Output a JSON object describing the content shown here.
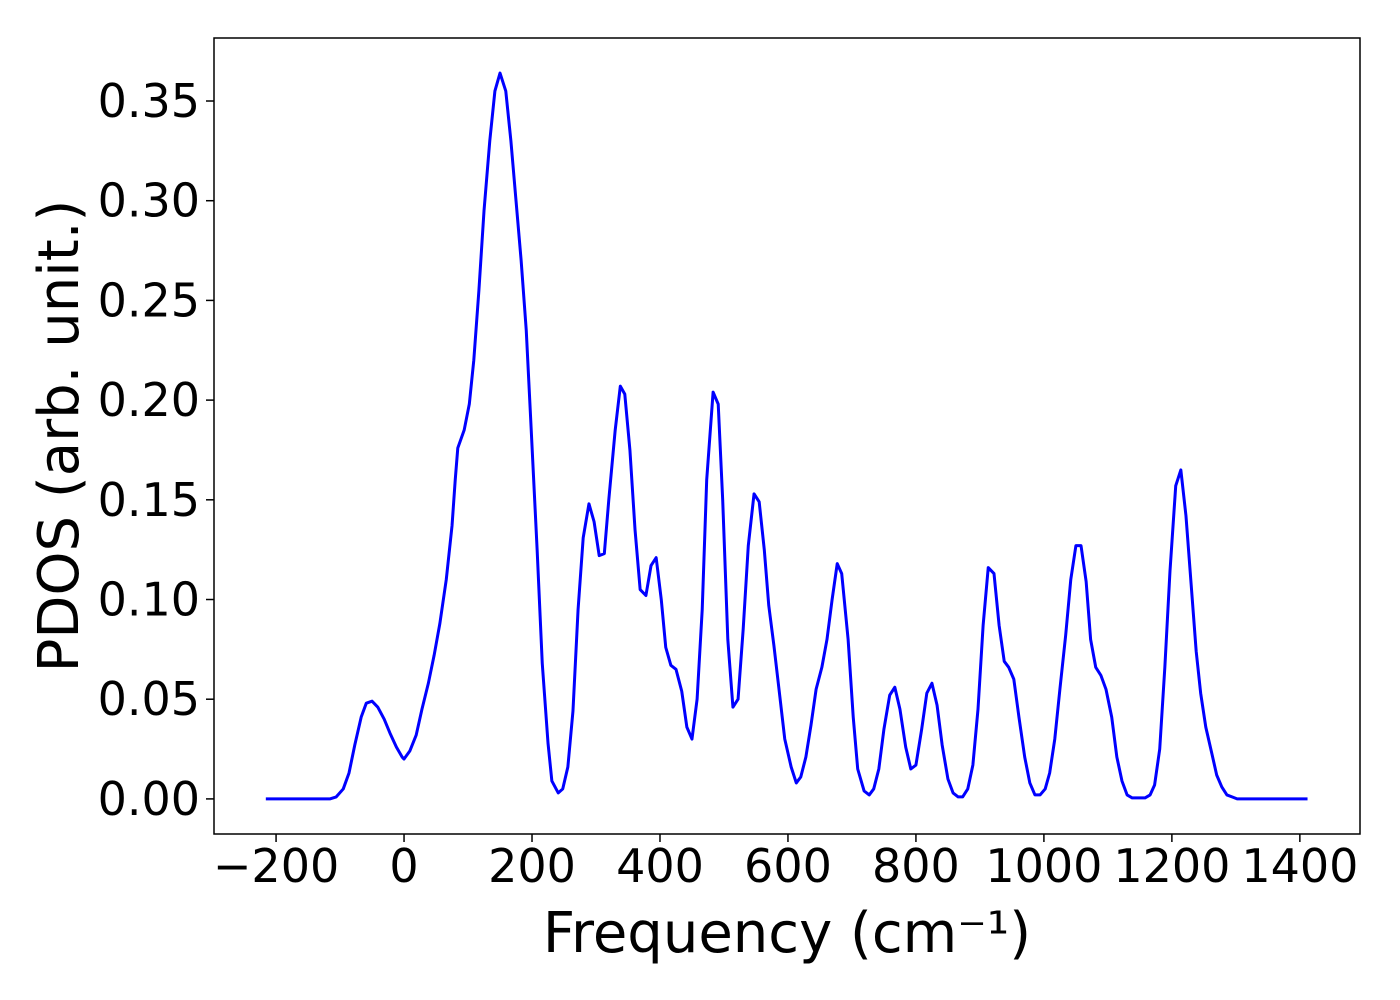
{
  "chart_data": {
    "type": "line",
    "xlabel": "Frequency (cm⁻¹)",
    "ylabel": "PDOS (arb. unit.)",
    "x": [
      -216,
      -116,
      -106,
      -95,
      -86,
      -77,
      -67,
      -59,
      -50,
      -41,
      -31,
      -22,
      -12,
      -3,
      0,
      9,
      19,
      28,
      38,
      47,
      56,
      66,
      75,
      80,
      84,
      94,
      102,
      109,
      117,
      125,
      134,
      142,
      150,
      159,
      167,
      175,
      183,
      191,
      198,
      208,
      216,
      225,
      231,
      241,
      248,
      256,
      264,
      272,
      280,
      289,
      297,
      305,
      313,
      320,
      330,
      338,
      345,
      353,
      361,
      369,
      378,
      386,
      394,
      402,
      409,
      417,
      425,
      434,
      442,
      450,
      458,
      466,
      473,
      483,
      491,
      498,
      506,
      514,
      522,
      530,
      538,
      547,
      555,
      563,
      570,
      578,
      586,
      595,
      605,
      613,
      620,
      628,
      636,
      644,
      653,
      661,
      669,
      677,
      684,
      694,
      702,
      709,
      719,
      727,
      734,
      742,
      750,
      759,
      767,
      775,
      784,
      792,
      800,
      809,
      817,
      825,
      833,
      841,
      850,
      858,
      866,
      873,
      881,
      889,
      897,
      905,
      913,
      922,
      930,
      938,
      945,
      953,
      961,
      970,
      978,
      986,
      994,
      1002,
      1009,
      1017,
      1025,
      1034,
      1042,
      1050,
      1058,
      1066,
      1073,
      1081,
      1089,
      1097,
      1106,
      1114,
      1122,
      1130,
      1138,
      1158,
      1166,
      1173,
      1181,
      1189,
      1197,
      1206,
      1214,
      1222,
      1230,
      1238,
      1245,
      1253,
      1263,
      1270,
      1278,
      1286,
      1294,
      1302,
      1412
    ],
    "series": [
      {
        "name": "PDOS",
        "color": "#0000ff",
        "values": [
          0,
          0,
          0.001,
          0.005,
          0.013,
          0.027,
          0.041,
          0.048,
          0.049,
          0.046,
          0.04,
          0.033,
          0.026,
          0.021,
          0.02,
          0.024,
          0.032,
          0.045,
          0.058,
          0.072,
          0.088,
          0.11,
          0.137,
          0.16,
          0.176,
          0.185,
          0.198,
          0.22,
          0.255,
          0.295,
          0.33,
          0.355,
          0.364,
          0.355,
          0.33,
          0.3,
          0.27,
          0.235,
          0.19,
          0.125,
          0.068,
          0.028,
          0.009,
          0.003,
          0.005,
          0.016,
          0.044,
          0.095,
          0.131,
          0.148,
          0.139,
          0.122,
          0.123,
          0.15,
          0.185,
          0.207,
          0.203,
          0.175,
          0.135,
          0.105,
          0.102,
          0.117,
          0.121,
          0.1,
          0.076,
          0.067,
          0.065,
          0.054,
          0.036,
          0.03,
          0.05,
          0.095,
          0.16,
          0.204,
          0.198,
          0.15,
          0.08,
          0.046,
          0.05,
          0.085,
          0.127,
          0.153,
          0.149,
          0.125,
          0.097,
          0.077,
          0.055,
          0.03,
          0.016,
          0.008,
          0.011,
          0.021,
          0.037,
          0.055,
          0.066,
          0.08,
          0.1,
          0.118,
          0.113,
          0.08,
          0.041,
          0.015,
          0.004,
          0.002,
          0.005,
          0.015,
          0.035,
          0.052,
          0.056,
          0.045,
          0.026,
          0.015,
          0.017,
          0.035,
          0.053,
          0.058,
          0.047,
          0.027,
          0.01,
          0.003,
          0.001,
          0.001,
          0.005,
          0.017,
          0.045,
          0.087,
          0.116,
          0.113,
          0.087,
          0.069,
          0.066,
          0.06,
          0.041,
          0.021,
          0.008,
          0.002,
          0.002,
          0.005,
          0.013,
          0.03,
          0.055,
          0.082,
          0.11,
          0.127,
          0.127,
          0.109,
          0.08,
          0.066,
          0.062,
          0.055,
          0.041,
          0.021,
          0.009,
          0.002,
          0.0005,
          0.0005,
          0.002,
          0.007,
          0.025,
          0.066,
          0.114,
          0.157,
          0.165,
          0.142,
          0.108,
          0.074,
          0.053,
          0.036,
          0.022,
          0.012,
          0.006,
          0.002,
          0.001,
          0,
          0
        ]
      }
    ],
    "xlim": [
      -297,
      1494
    ],
    "ylim": [
      -0.0176,
      0.3816
    ],
    "xticks": [
      {
        "value": -200,
        "label": "−200"
      },
      0,
      200,
      400,
      600,
      800,
      1000,
      1200,
      1400
    ],
    "yticks": [
      {
        "value": 0,
        "label": "0.00"
      },
      {
        "value": 0.05,
        "label": "0.05"
      },
      {
        "value": 0.1,
        "label": "0.10"
      },
      {
        "value": 0.15,
        "label": "0.15"
      },
      {
        "value": 0.2,
        "label": "0.20"
      },
      {
        "value": 0.25,
        "label": "0.25"
      },
      {
        "value": 0.3,
        "label": "0.30"
      },
      {
        "value": 0.35,
        "label": "0.35"
      }
    ],
    "grid": false
  }
}
